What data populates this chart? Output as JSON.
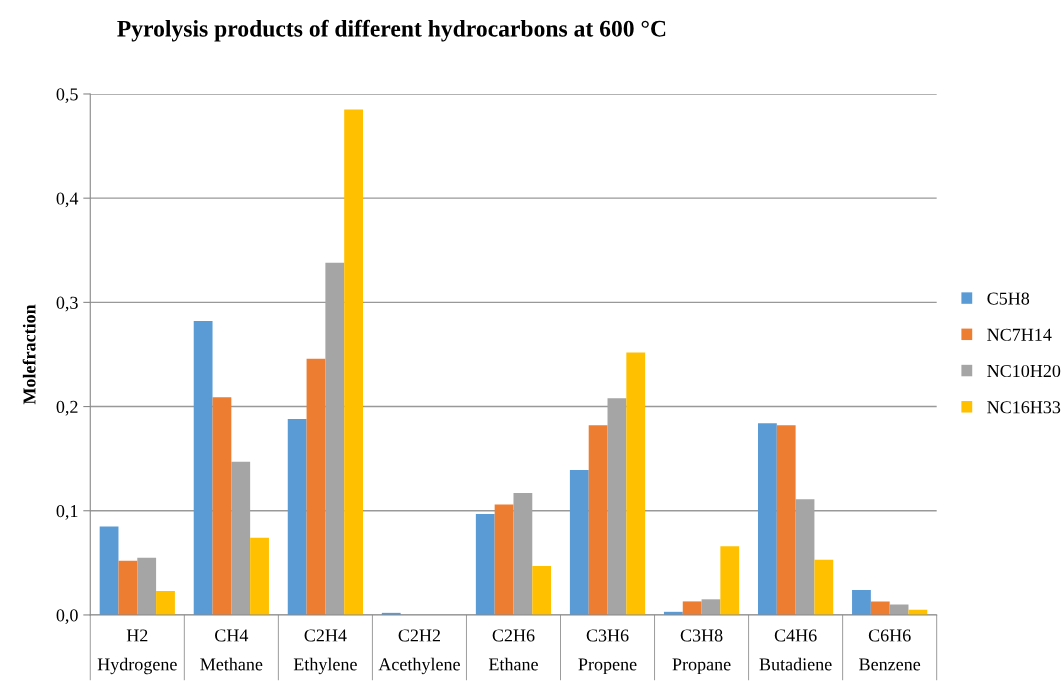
{
  "chart_data": {
    "type": "bar",
    "title": "Pyrolysis products of different hydrocarbons at 600 °C",
    "ylabel": "Molefraction",
    "categories": [
      "H2\nHydrogene",
      "CH4\nMethane",
      "C2H4\nEthylene",
      "C2H2\nAcethylene",
      "C2H6\nEthane",
      "C3H6\nPropene",
      "C3H8\nPropane",
      "C4H6\nButadiene",
      "C6H6\nBenzene"
    ],
    "series": [
      {
        "name": "C5H8",
        "color": "#5b9bd5",
        "values": [
          0.085,
          0.282,
          0.188,
          0.002,
          0.097,
          0.139,
          0.003,
          0.184,
          0.024
        ]
      },
      {
        "name": "NC7H14",
        "color": "#ed7d31",
        "values": [
          0.052,
          0.209,
          0.246,
          0,
          0.106,
          0.182,
          0.013,
          0.182,
          0.013
        ]
      },
      {
        "name": "NC10H20",
        "color": "#a5a5a5",
        "values": [
          0.055,
          0.147,
          0.338,
          0,
          0.117,
          0.208,
          0.015,
          0.111,
          0.01
        ]
      },
      {
        "name": "NC16H33",
        "color": "#ffc000",
        "values": [
          0.023,
          0.074,
          0.485,
          0,
          0.047,
          0.252,
          0.066,
          0.053,
          0.005
        ]
      }
    ],
    "ylim": [
      0,
      0.5
    ],
    "yticks": [
      {
        "value": 0,
        "label": "0,0"
      },
      {
        "value": 0.1,
        "label": "0,1"
      },
      {
        "value": 0.2,
        "label": "0,2"
      },
      {
        "value": 0.3,
        "label": "0,3"
      },
      {
        "value": 0.4,
        "label": "0,4"
      },
      {
        "value": 0.5,
        "label": "0,5"
      }
    ],
    "grid": "y",
    "legend": "right"
  }
}
